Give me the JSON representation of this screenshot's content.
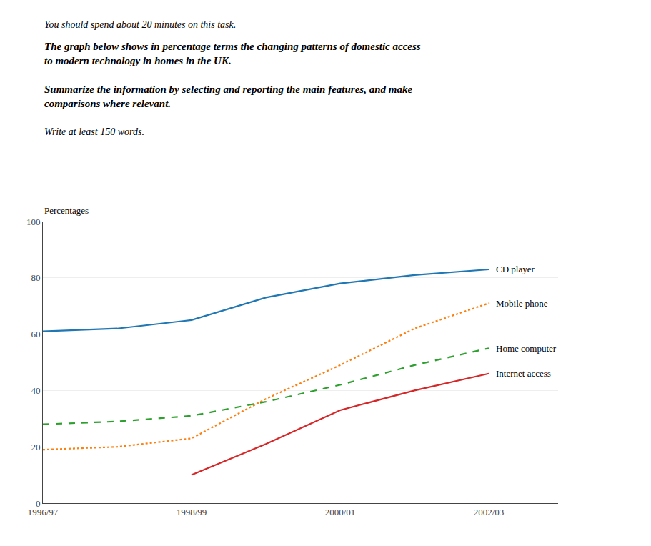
{
  "chart_data": {
    "type": "line",
    "annotations": [
      "You should spend about 20 minutes on this task.",
      "The graph below shows in percentage terms the changing patterns of domestic access\nto modern technology in homes in the UK.",
      "Summarize the information by selecting and reporting the main features, and make\ncomparisons where relevant.",
      "Write at least 150 words."
    ],
    "ylabel": "Percentages",
    "categories": [
      "1996/97",
      null,
      "1998/99",
      null,
      "2000/01",
      null,
      "2002/03"
    ],
    "series": [
      {
        "name": "CD player",
        "line_style": "solid",
        "values": [
          61,
          62,
          65,
          73,
          78,
          81,
          83
        ]
      },
      {
        "name": "Mobile phone",
        "line_style": "dotted",
        "values": [
          19,
          20,
          23,
          37,
          49,
          62,
          71
        ]
      },
      {
        "name": "Home computer",
        "line_style": "dashed",
        "values": [
          28,
          29,
          31,
          36,
          42,
          49,
          55
        ]
      },
      {
        "name": "Internet access",
        "line_style": "solid",
        "values": [
          null,
          null,
          10,
          21,
          33,
          40,
          46
        ]
      }
    ],
    "ylim": [
      0,
      100
    ],
    "yticks": [
      0,
      20,
      40,
      60,
      80,
      100
    ],
    "grid": true
  }
}
